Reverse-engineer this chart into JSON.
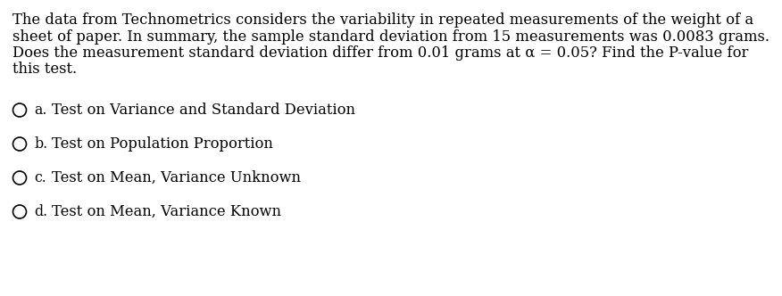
{
  "background_color": "#ffffff",
  "paragraph_lines": [
    "The data from Technometrics considers the variability in repeated measurements of the weight of a",
    "sheet of paper. In summary, the sample standard deviation from 15 measurements was 0.0083 grams.",
    "Does the measurement standard deviation differ from 0.01 grams at α = 0.05? Find the P-value for",
    "this test."
  ],
  "options": [
    {
      "label": "a.",
      "text": "Test on Variance and Standard Deviation"
    },
    {
      "label": "b.",
      "text": "Test on Population Proportion"
    },
    {
      "label": "c.",
      "text": "Test on Mean, Variance Unknown"
    },
    {
      "label": "d.",
      "text": "Test on Mean, Variance Known"
    }
  ],
  "font_size_paragraph": 11.8,
  "font_size_options": 11.8,
  "text_color": "#000000",
  "fig_width": 8.76,
  "fig_height": 3.32,
  "dpi": 100
}
